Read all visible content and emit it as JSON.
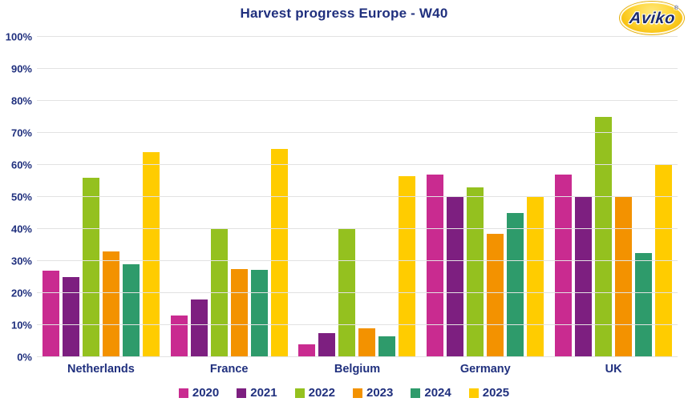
{
  "title": "Harvest progress Europe - W40",
  "logo": {
    "brand": "Aviko",
    "registered": "®"
  },
  "chart_data": {
    "type": "bar",
    "title": "Harvest progress Europe - W40",
    "categories": [
      "Netherlands",
      "France",
      "Belgium",
      "Germany",
      "UK"
    ],
    "series": [
      {
        "name": "2020",
        "color": "#C92B90",
        "values": [
          27,
          13,
          4,
          57,
          57
        ]
      },
      {
        "name": "2021",
        "color": "#7D1F80",
        "values": [
          25,
          18,
          7.5,
          50,
          50
        ]
      },
      {
        "name": "2022",
        "color": "#94C11F",
        "values": [
          56,
          40,
          40,
          53,
          75
        ]
      },
      {
        "name": "2023",
        "color": "#F39200",
        "values": [
          33,
          27.5,
          9,
          38.5,
          50
        ]
      },
      {
        "name": "2024",
        "color": "#2E9B6B",
        "values": [
          29,
          27.3,
          6.5,
          45,
          32.5
        ]
      },
      {
        "name": "2025",
        "color": "#FFCC00",
        "values": [
          64,
          65,
          56.5,
          50,
          60
        ]
      }
    ],
    "xlabel": "",
    "ylabel": "",
    "ylim": [
      0,
      100
    ],
    "yticks": [
      "0%",
      "10%",
      "20%",
      "30%",
      "40%",
      "50%",
      "60%",
      "70%",
      "80%",
      "90%",
      "100%"
    ],
    "grid": "horizontal",
    "legend_position": "bottom",
    "colors": {
      "label_text": "#20307E",
      "gridline": "#E2E2E2",
      "background": "#FFFFFF",
      "logo_gold": "#F7BF0C"
    }
  }
}
